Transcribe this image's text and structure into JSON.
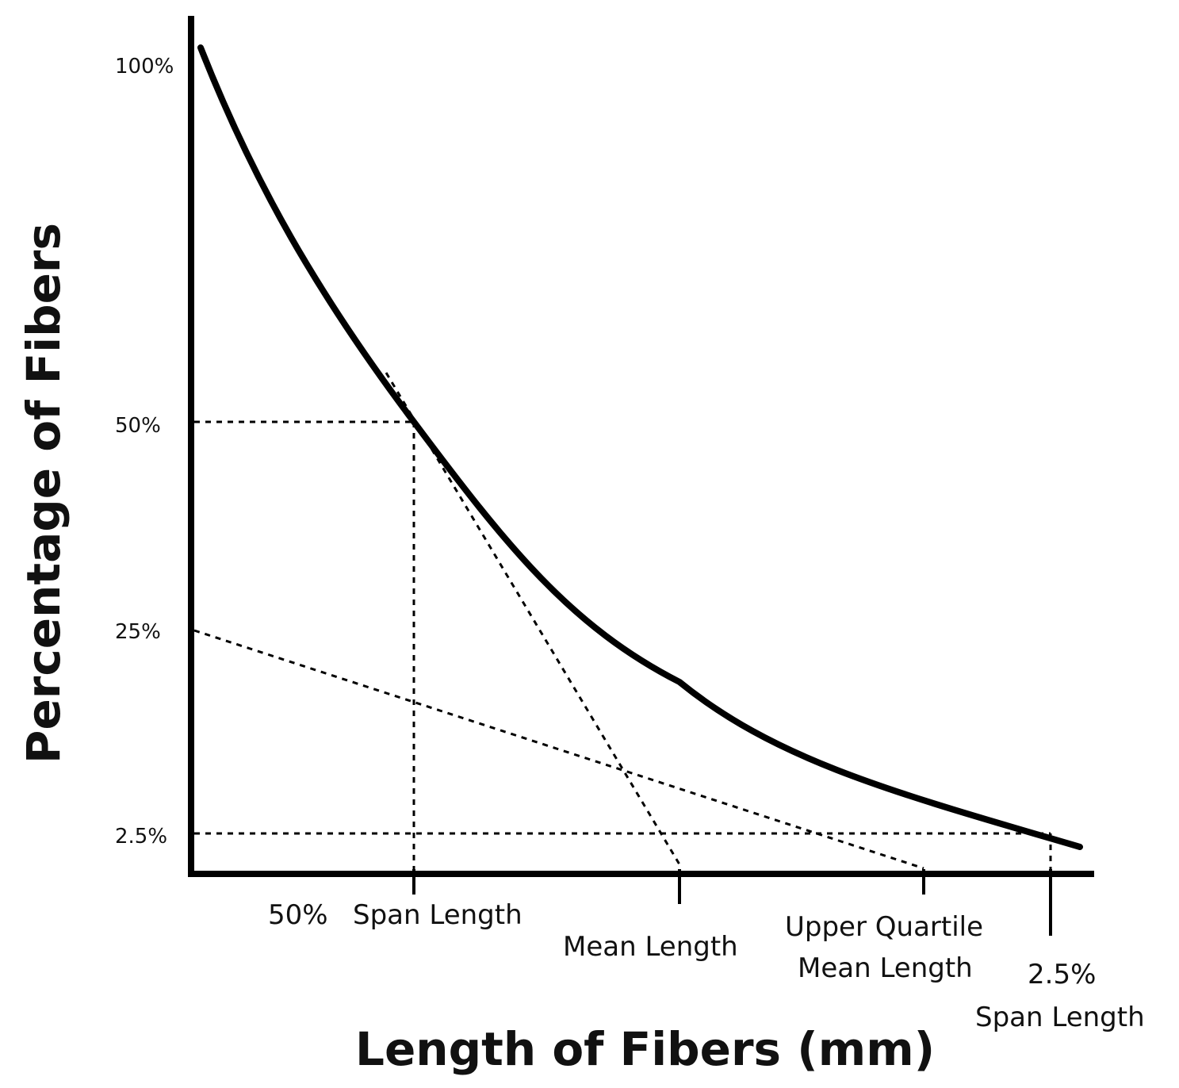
{
  "figure": {
    "y_axis_title": "Percentage of Fibers",
    "x_axis_title": "Length of Fibers (mm)",
    "y_ticks": [
      "100%",
      "50%",
      "25%",
      "2.5%"
    ],
    "x_labels": {
      "span50": {
        "prefix": "50%",
        "label": "Span Length"
      },
      "mean": {
        "label": "Mean Length"
      },
      "uqml": {
        "line1": "Upper Quartile",
        "line2": "Mean Length"
      },
      "span25": {
        "line1": "2.5%",
        "line2": "Span Length"
      }
    },
    "colors": {
      "ink": "#000000",
      "background": "#ffffff"
    }
  }
}
